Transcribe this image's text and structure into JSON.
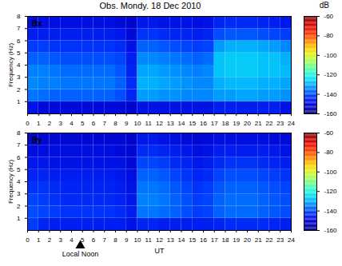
{
  "chart_data": [
    {
      "type": "heatmap",
      "title": "Obs. Mondy. 18 Dec 2010",
      "label": "Bx",
      "ylabel": "Frequency (Hz)",
      "x_bins": [
        0,
        1,
        2,
        3,
        4,
        5,
        6,
        7,
        8,
        9,
        10,
        11,
        12,
        13,
        14,
        15,
        16,
        17,
        18,
        19,
        20,
        21,
        22,
        23,
        24
      ],
      "y_bins": [
        0,
        1,
        2,
        3,
        4,
        5,
        6,
        7,
        8
      ],
      "xlim": [
        0,
        24
      ],
      "ylim": [
        0,
        8
      ],
      "xticks": [
        0,
        1,
        2,
        3,
        4,
        5,
        6,
        7,
        8,
        9,
        10,
        11,
        12,
        13,
        14,
        15,
        16,
        17,
        18,
        19,
        20,
        21,
        22,
        23,
        24
      ],
      "yticks": [
        1,
        2,
        3,
        4,
        5,
        6,
        7,
        8
      ],
      "values": [
        [
          -148,
          -150,
          -150,
          -150,
          -150,
          -150,
          -150,
          -150,
          -150,
          -152,
          -148,
          -148,
          -148,
          -148,
          -148,
          -148,
          -148,
          -146,
          -146,
          -146,
          -146,
          -146,
          -146,
          -148
        ],
        [
          -136,
          -137,
          -138,
          -138,
          -138,
          -138,
          -138,
          -138,
          -140,
          -145,
          -132,
          -132,
          -133,
          -133,
          -134,
          -134,
          -134,
          -132,
          -132,
          -131,
          -131,
          -132,
          -132,
          -133
        ],
        [
          -134,
          -135,
          -135,
          -136,
          -136,
          -136,
          -136,
          -136,
          -138,
          -144,
          -130,
          -130,
          -131,
          -132,
          -133,
          -134,
          -134,
          -130,
          -129,
          -129,
          -129,
          -130,
          -130,
          -131
        ],
        [
          -135,
          -135,
          -136,
          -137,
          -137,
          -137,
          -137,
          -137,
          -139,
          -145,
          -131,
          -131,
          -132,
          -133,
          -134,
          -135,
          -134,
          -128,
          -127,
          -127,
          -127,
          -128,
          -128,
          -129
        ],
        [
          -138,
          -138,
          -139,
          -140,
          -140,
          -140,
          -140,
          -140,
          -141,
          -146,
          -134,
          -134,
          -135,
          -136,
          -137,
          -138,
          -137,
          -128,
          -127,
          -127,
          -127,
          -128,
          -128,
          -130
        ],
        [
          -142,
          -142,
          -143,
          -143,
          -143,
          -143,
          -143,
          -143,
          -144,
          -148,
          -138,
          -138,
          -139,
          -140,
          -141,
          -142,
          -141,
          -132,
          -130,
          -130,
          -130,
          -131,
          -132,
          -134
        ],
        [
          -146,
          -146,
          -146,
          -146,
          -146,
          -146,
          -146,
          -146,
          -147,
          -150,
          -143,
          -143,
          -144,
          -145,
          -145,
          -146,
          -145,
          -140,
          -139,
          -139,
          -139,
          -140,
          -141,
          -142
        ],
        [
          -149,
          -149,
          -149,
          -149,
          -149,
          -149,
          -149,
          -149,
          -150,
          -152,
          -147,
          -147,
          -148,
          -148,
          -148,
          -149,
          -148,
          -145,
          -144,
          -144,
          -144,
          -145,
          -146,
          -147
        ]
      ],
      "colorbar": {
        "title": "dB",
        "range": [
          -160,
          -60
        ],
        "ticks": [
          -60,
          -80,
          -100,
          -120,
          -140,
          -160
        ]
      }
    },
    {
      "type": "heatmap",
      "label": "By",
      "ylabel": "Frequency (Hz)",
      "xlabel": "UT",
      "x_bins": [
        0,
        1,
        2,
        3,
        4,
        5,
        6,
        7,
        8,
        9,
        10,
        11,
        12,
        13,
        14,
        15,
        16,
        17,
        18,
        19,
        20,
        21,
        22,
        23,
        24
      ],
      "y_bins": [
        0,
        1,
        2,
        3,
        4,
        5,
        6,
        7,
        8
      ],
      "xlim": [
        0,
        24
      ],
      "ylim": [
        0,
        8
      ],
      "xticks": [
        0,
        1,
        2,
        3,
        4,
        5,
        6,
        7,
        8,
        9,
        10,
        11,
        12,
        13,
        14,
        15,
        16,
        17,
        18,
        19,
        20,
        21,
        22,
        23,
        24
      ],
      "yticks": [
        1,
        2,
        3,
        4,
        5,
        6,
        7,
        8
      ],
      "values": [
        [
          -142,
          -145,
          -146,
          -146,
          -146,
          -146,
          -146,
          -146,
          -146,
          -148,
          -145,
          -145,
          -146,
          -146,
          -146,
          -146,
          -146,
          -145,
          -144,
          -144,
          -144,
          -144,
          -145,
          -146
        ],
        [
          -140,
          -141,
          -142,
          -143,
          -143,
          -143,
          -143,
          -143,
          -144,
          -146,
          -136,
          -136,
          -137,
          -138,
          -140,
          -142,
          -141,
          -138,
          -137,
          -137,
          -137,
          -138,
          -139,
          -140
        ],
        [
          -141,
          -142,
          -143,
          -144,
          -144,
          -144,
          -144,
          -144,
          -145,
          -147,
          -135,
          -135,
          -136,
          -138,
          -140,
          -142,
          -141,
          -138,
          -137,
          -137,
          -137,
          -138,
          -139,
          -140
        ],
        [
          -143,
          -143,
          -144,
          -145,
          -145,
          -145,
          -145,
          -145,
          -146,
          -148,
          -136,
          -136,
          -137,
          -139,
          -141,
          -143,
          -142,
          -139,
          -138,
          -138,
          -138,
          -139,
          -140,
          -141
        ],
        [
          -145,
          -145,
          -146,
          -146,
          -146,
          -146,
          -146,
          -146,
          -147,
          -149,
          -138,
          -138,
          -139,
          -141,
          -143,
          -145,
          -144,
          -141,
          -140,
          -140,
          -140,
          -141,
          -142,
          -143
        ],
        [
          -147,
          -147,
          -148,
          -148,
          -148,
          -148,
          -148,
          -148,
          -148,
          -150,
          -141,
          -141,
          -142,
          -144,
          -145,
          -147,
          -146,
          -144,
          -143,
          -143,
          -143,
          -144,
          -145,
          -146
        ],
        [
          -149,
          -149,
          -149,
          -149,
          -149,
          -149,
          -149,
          -149,
          -150,
          -151,
          -144,
          -144,
          -145,
          -146,
          -147,
          -149,
          -148,
          -146,
          -146,
          -146,
          -146,
          -146,
          -147,
          -148
        ],
        [
          -151,
          -151,
          -151,
          -151,
          -151,
          -151,
          -151,
          -151,
          -151,
          -152,
          -147,
          -147,
          -148,
          -149,
          -150,
          -151,
          -150,
          -149,
          -149,
          -149,
          -149,
          -149,
          -150,
          -150
        ]
      ],
      "annotations": [
        {
          "text": "Local Noon",
          "x": 4.8,
          "marker": "triangle"
        }
      ],
      "colorbar": {
        "range": [
          -160,
          -60
        ],
        "ticks": [
          -60,
          -80,
          -100,
          -120,
          -140,
          -160
        ]
      }
    }
  ]
}
